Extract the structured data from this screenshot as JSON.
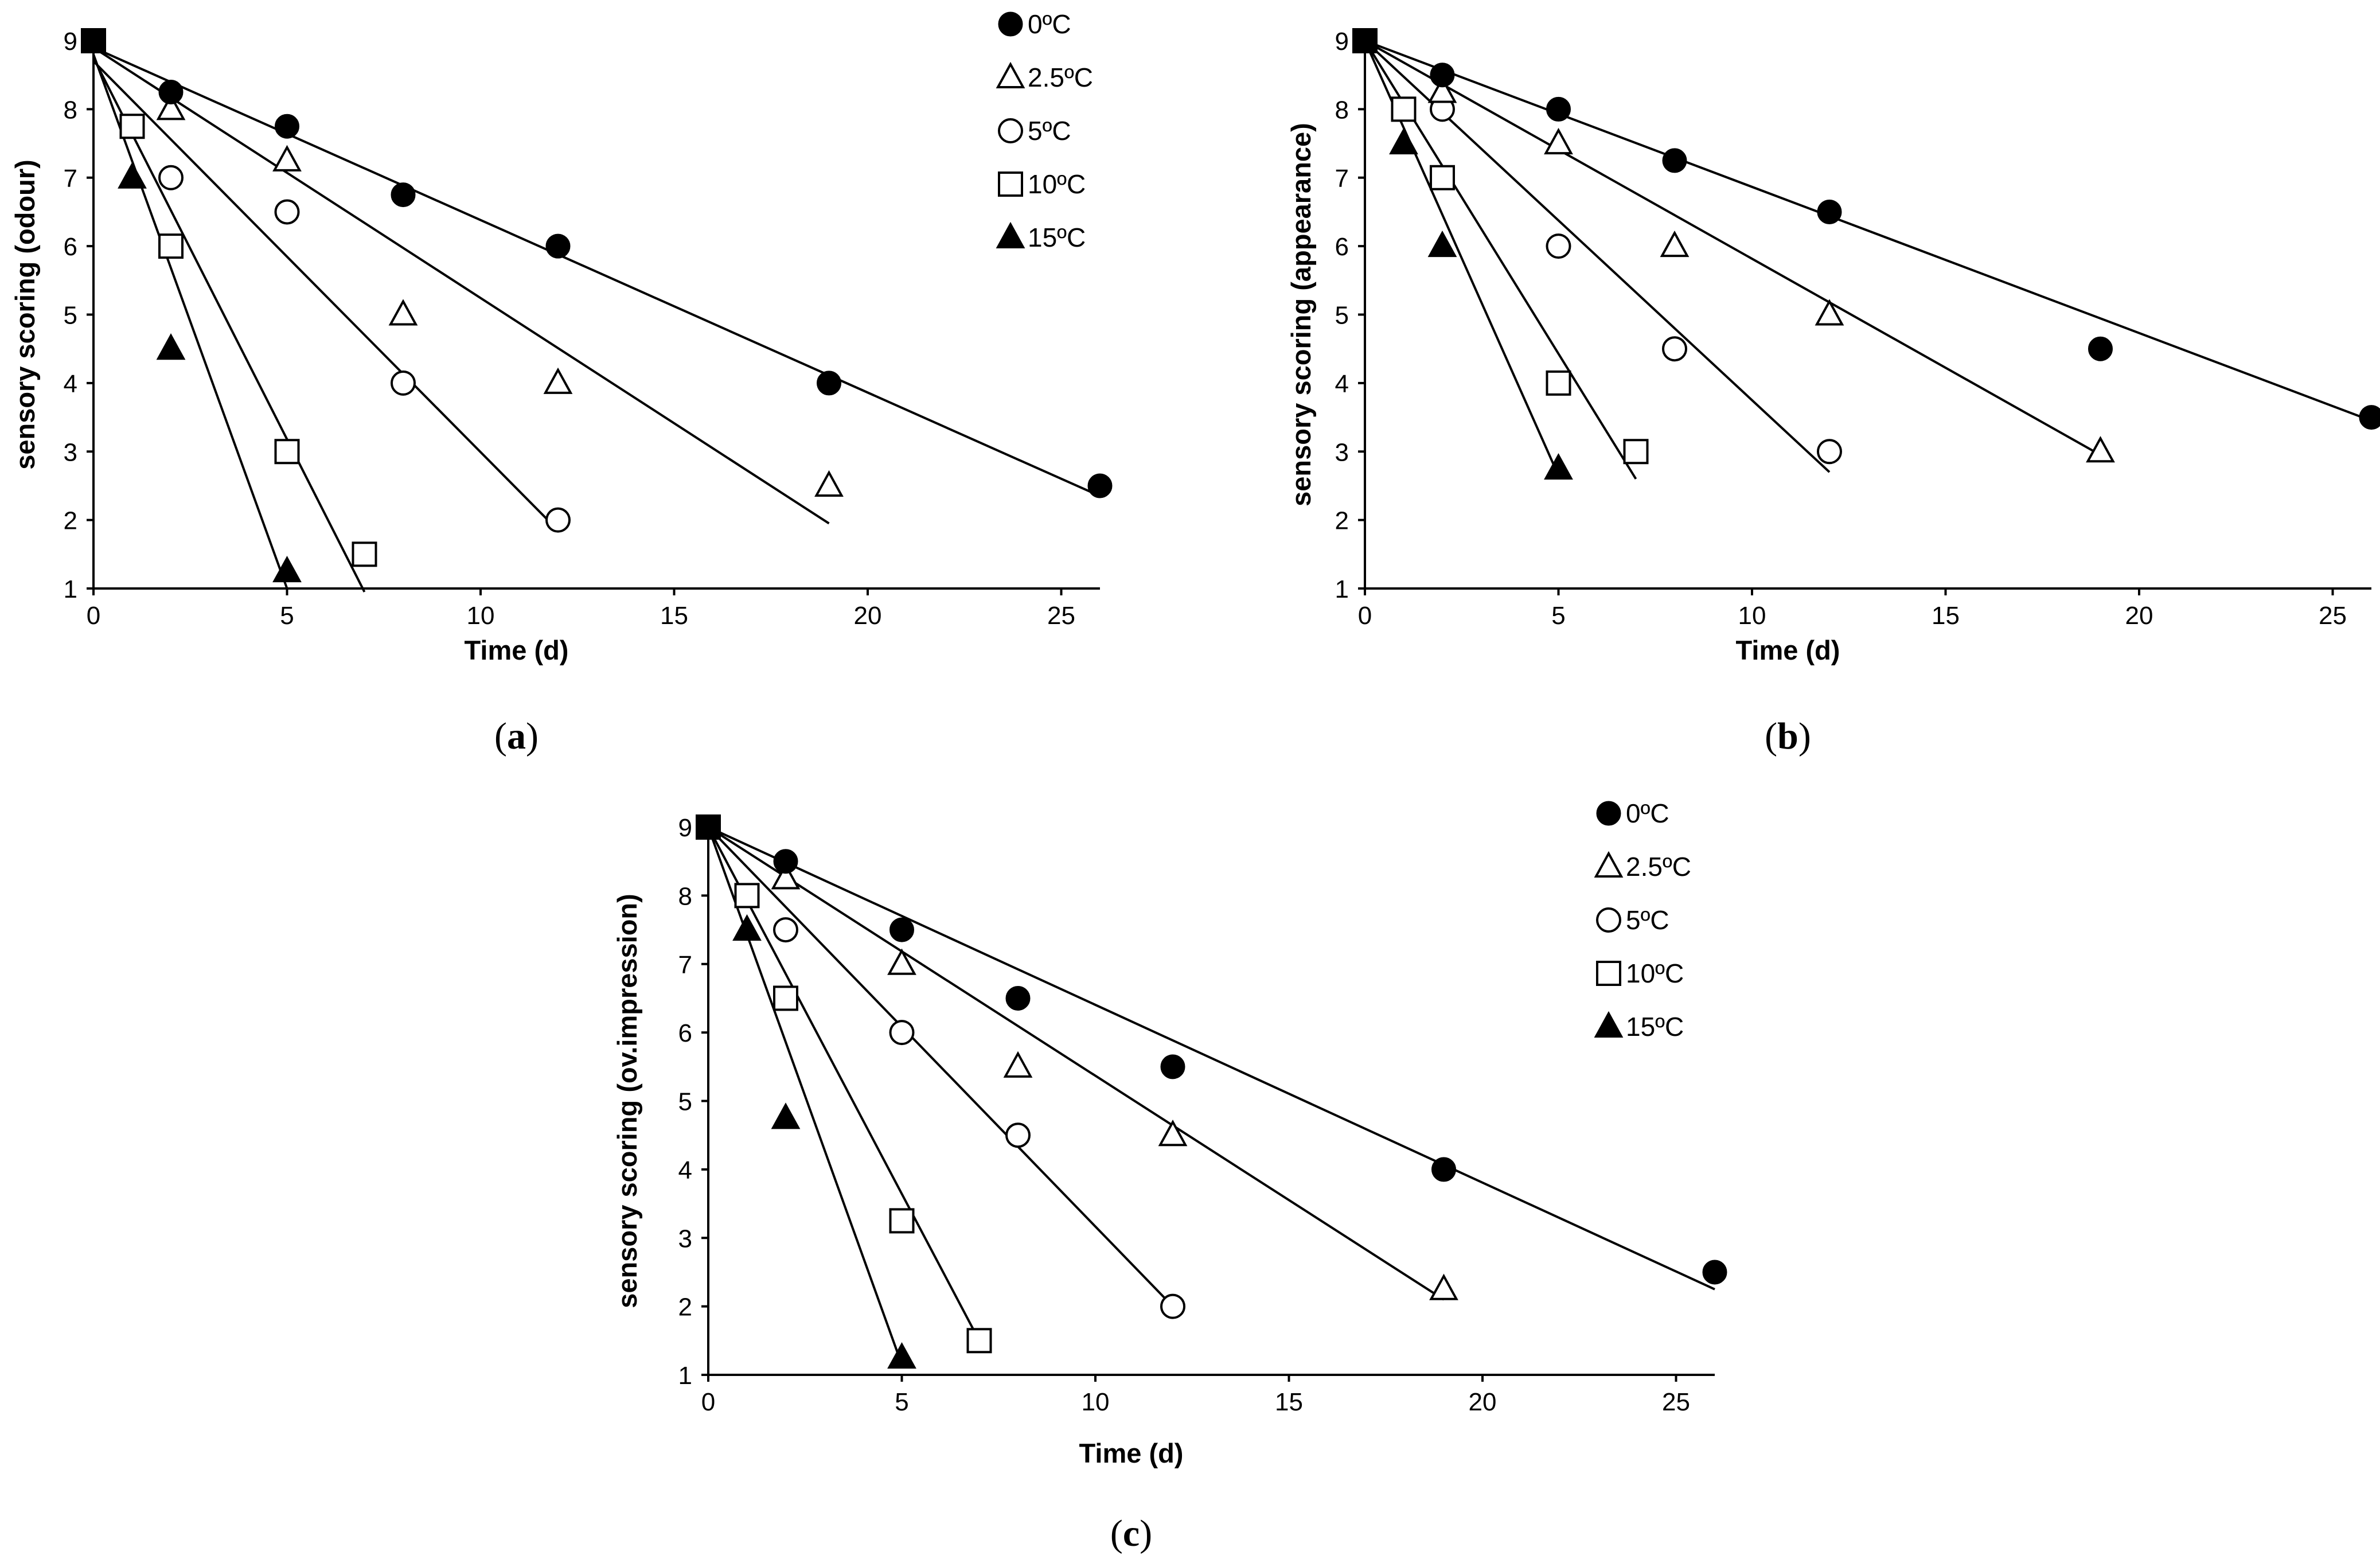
{
  "colors": {
    "ink": "#000000",
    "background": "#ffffff"
  },
  "legend_entries": [
    {
      "label": "0ºC",
      "marker": "filled-circle"
    },
    {
      "label": "2.5ºC",
      "marker": "open-triangle"
    },
    {
      "label": "5ºC",
      "marker": "open-circle"
    },
    {
      "label": "10ºC",
      "marker": "open-square"
    },
    {
      "label": "15ºC",
      "marker": "filled-triangle"
    }
  ],
  "chart_data": [
    {
      "type": "scatter",
      "panel": "a",
      "caption": {
        "open": "(",
        "letter": "a",
        "close": ")"
      },
      "title": "",
      "xlabel": "Time (d)",
      "ylabel": "sensory scoring (odour)",
      "xlim": [
        0,
        26
      ],
      "ylim": [
        1,
        9
      ],
      "xticks": [
        0,
        5,
        10,
        15,
        20,
        25
      ],
      "yticks": [
        1,
        2,
        3,
        4,
        5,
        6,
        7,
        8,
        9
      ],
      "grid": false,
      "legend": "top-right",
      "series": [
        {
          "name": "0ºC",
          "marker": "filled-circle",
          "x": [
            0,
            2,
            5,
            8,
            12,
            19,
            26
          ],
          "y": [
            9,
            8.25,
            7.75,
            6.75,
            6,
            4,
            2.5
          ],
          "fit": {
            "x": [
              0,
              26
            ],
            "y": [
              8.9,
              2.35
            ]
          }
        },
        {
          "name": "2.5ºC",
          "marker": "open-triangle",
          "x": [
            0,
            2,
            5,
            8,
            12,
            19
          ],
          "y": [
            9,
            8,
            7.25,
            5,
            4,
            2.5
          ],
          "fit": {
            "x": [
              0,
              19
            ],
            "y": [
              8.9,
              1.95
            ]
          }
        },
        {
          "name": "5ºC",
          "marker": "open-circle",
          "x": [
            0,
            2,
            5,
            8,
            12
          ],
          "y": [
            9,
            7,
            6.5,
            4,
            2
          ],
          "fit": {
            "x": [
              0,
              12
            ],
            "y": [
              8.7,
              1.85
            ]
          }
        },
        {
          "name": "10ºC",
          "marker": "open-square",
          "x": [
            0,
            1,
            2,
            5,
            7
          ],
          "y": [
            9,
            7.75,
            6,
            3,
            1.5
          ],
          "fit": {
            "x": [
              0,
              7
            ],
            "y": [
              8.75,
              0.95
            ]
          }
        },
        {
          "name": "15ºC",
          "marker": "filled-triangle",
          "x": [
            0,
            1,
            2,
            5
          ],
          "y": [
            9,
            7,
            4.5,
            1.25
          ],
          "fit": {
            "x": [
              0,
              5
            ],
            "y": [
              8.8,
              1
            ]
          }
        }
      ]
    },
    {
      "type": "scatter",
      "panel": "b",
      "caption": {
        "open": "(",
        "letter": "b",
        "close": ")"
      },
      "title": "",
      "xlabel": "Time (d)",
      "ylabel": "sensory scoring (appearance)",
      "xlim": [
        0,
        26
      ],
      "ylim": [
        1,
        9
      ],
      "xticks": [
        0,
        5,
        10,
        15,
        20,
        25
      ],
      "yticks": [
        1,
        2,
        3,
        4,
        5,
        6,
        7,
        8,
        9
      ],
      "grid": false,
      "legend": "none",
      "series": [
        {
          "name": "0ºC",
          "marker": "filled-circle",
          "x": [
            0,
            2,
            5,
            8,
            12,
            19,
            26
          ],
          "y": [
            9,
            8.5,
            8,
            7.25,
            6.5,
            4.5,
            3.5
          ],
          "fit": {
            "x": [
              0,
              26
            ],
            "y": [
              9,
              3.45
            ]
          }
        },
        {
          "name": "2.5ºC",
          "marker": "open-triangle",
          "x": [
            0,
            2,
            5,
            8,
            12,
            19
          ],
          "y": [
            9,
            8.25,
            7.5,
            6,
            5,
            3
          ],
          "fit": {
            "x": [
              0,
              19
            ],
            "y": [
              9,
              2.95
            ]
          }
        },
        {
          "name": "5ºC",
          "marker": "open-circle",
          "x": [
            0,
            2,
            5,
            8,
            12
          ],
          "y": [
            9,
            8,
            6,
            4.5,
            3
          ],
          "fit": {
            "x": [
              0,
              12
            ],
            "y": [
              9,
              2.7
            ]
          }
        },
        {
          "name": "10ºC",
          "marker": "open-square",
          "x": [
            0,
            1,
            2,
            5,
            7
          ],
          "y": [
            9,
            8,
            7,
            4,
            3
          ],
          "fit": {
            "x": [
              0,
              7
            ],
            "y": [
              9,
              2.6
            ]
          }
        },
        {
          "name": "15ºC",
          "marker": "filled-triangle",
          "x": [
            0,
            1,
            2,
            5
          ],
          "y": [
            9,
            7.5,
            6,
            2.75
          ],
          "fit": {
            "x": [
              0,
              5
            ],
            "y": [
              9,
              2.65
            ]
          }
        }
      ]
    },
    {
      "type": "scatter",
      "panel": "c",
      "caption": {
        "open": "(",
        "letter": "c",
        "close": ")"
      },
      "title": "",
      "xlabel": "Time (d)",
      "ylabel": "sensory scoring (ov.impression)",
      "xlim": [
        0,
        26
      ],
      "ylim": [
        1,
        9
      ],
      "xticks": [
        0,
        5,
        10,
        15,
        20,
        25
      ],
      "yticks": [
        1,
        2,
        3,
        4,
        5,
        6,
        7,
        8,
        9
      ],
      "grid": false,
      "legend": "top-right",
      "series": [
        {
          "name": "0ºC",
          "marker": "filled-circle",
          "x": [
            0,
            2,
            5,
            8,
            12,
            19,
            26
          ],
          "y": [
            9,
            8.5,
            7.5,
            6.5,
            5.5,
            4,
            2.5
          ],
          "fit": {
            "x": [
              0,
              26
            ],
            "y": [
              9,
              2.25
            ]
          }
        },
        {
          "name": "2.5ºC",
          "marker": "open-triangle",
          "x": [
            0,
            2,
            5,
            8,
            12,
            19
          ],
          "y": [
            9,
            8.25,
            7,
            5.5,
            4.5,
            2.25
          ],
          "fit": {
            "x": [
              0,
              19
            ],
            "y": [
              9,
              2.1
            ]
          }
        },
        {
          "name": "5ºC",
          "marker": "open-circle",
          "x": [
            0,
            2,
            5,
            8,
            12
          ],
          "y": [
            9,
            7.5,
            6,
            4.5,
            2
          ],
          "fit": {
            "x": [
              0,
              12
            ],
            "y": [
              9,
              2
            ]
          }
        },
        {
          "name": "10ºC",
          "marker": "open-square",
          "x": [
            0,
            1,
            2,
            5,
            7
          ],
          "y": [
            9,
            8,
            6.5,
            3.25,
            1.5
          ],
          "fit": {
            "x": [
              0,
              7
            ],
            "y": [
              9,
              1.5
            ]
          }
        },
        {
          "name": "15ºC",
          "marker": "filled-triangle",
          "x": [
            0,
            1,
            2,
            5
          ],
          "y": [
            9,
            7.5,
            4.75,
            1.25
          ],
          "fit": {
            "x": [
              0,
              5
            ],
            "y": [
              9,
              1.15
            ]
          }
        }
      ]
    }
  ]
}
